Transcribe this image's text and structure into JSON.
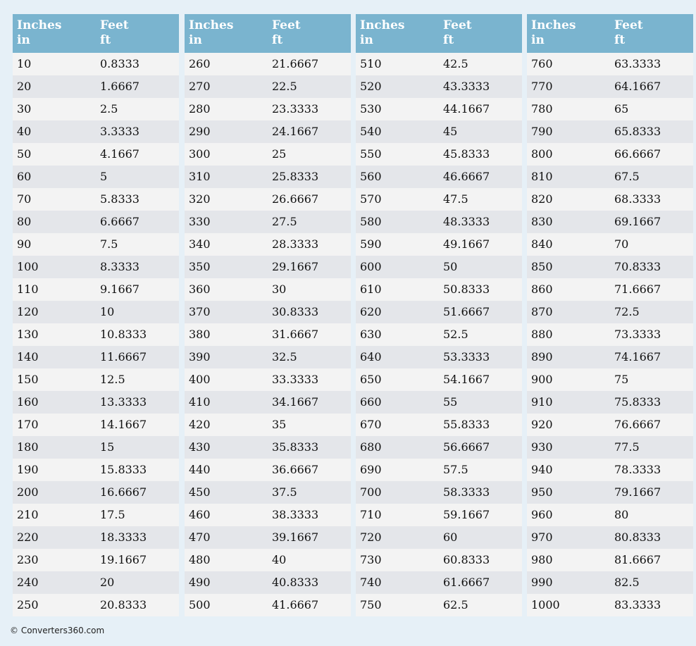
{
  "tables": [
    {
      "header": [
        [
          "Inches",
          "in"
        ],
        [
          "Feet",
          "ft"
        ]
      ],
      "rows": [
        [
          10,
          0.8333
        ],
        [
          20,
          1.6667
        ],
        [
          30,
          2.5
        ],
        [
          40,
          3.3333
        ],
        [
          50,
          4.1667
        ],
        [
          60,
          5
        ],
        [
          70,
          5.8333
        ],
        [
          80,
          6.6667
        ],
        [
          90,
          7.5
        ],
        [
          100,
          8.3333
        ],
        [
          110,
          9.1667
        ],
        [
          120,
          10
        ],
        [
          130,
          10.8333
        ],
        [
          140,
          11.6667
        ],
        [
          150,
          12.5
        ],
        [
          160,
          13.3333
        ],
        [
          170,
          14.1667
        ],
        [
          180,
          15
        ],
        [
          190,
          15.8333
        ],
        [
          200,
          16.6667
        ],
        [
          210,
          17.5
        ],
        [
          220,
          18.3333
        ],
        [
          230,
          19.1667
        ],
        [
          240,
          20
        ],
        [
          250,
          20.8333
        ]
      ]
    },
    {
      "header": [
        [
          "Inches",
          "in"
        ],
        [
          "Feet",
          "ft"
        ]
      ],
      "rows": [
        [
          260,
          21.6667
        ],
        [
          270,
          22.5
        ],
        [
          280,
          23.3333
        ],
        [
          290,
          24.1667
        ],
        [
          300,
          25
        ],
        [
          310,
          25.8333
        ],
        [
          320,
          26.6667
        ],
        [
          330,
          27.5
        ],
        [
          340,
          28.3333
        ],
        [
          350,
          29.1667
        ],
        [
          360,
          30
        ],
        [
          370,
          30.8333
        ],
        [
          380,
          31.6667
        ],
        [
          390,
          32.5
        ],
        [
          400,
          33.3333
        ],
        [
          410,
          34.1667
        ],
        [
          420,
          35
        ],
        [
          430,
          35.8333
        ],
        [
          440,
          36.6667
        ],
        [
          450,
          37.5
        ],
        [
          460,
          38.3333
        ],
        [
          470,
          39.1667
        ],
        [
          480,
          40
        ],
        [
          490,
          40.8333
        ],
        [
          500,
          41.6667
        ]
      ]
    },
    {
      "header": [
        [
          "Inches",
          "in"
        ],
        [
          "Feet",
          "ft"
        ]
      ],
      "rows": [
        [
          510,
          42.5
        ],
        [
          520,
          43.3333
        ],
        [
          530,
          44.1667
        ],
        [
          540,
          45
        ],
        [
          550,
          45.8333
        ],
        [
          560,
          46.6667
        ],
        [
          570,
          47.5
        ],
        [
          580,
          48.3333
        ],
        [
          590,
          49.1667
        ],
        [
          600,
          50
        ],
        [
          610,
          50.8333
        ],
        [
          620,
          51.6667
        ],
        [
          630,
          52.5
        ],
        [
          640,
          53.3333
        ],
        [
          650,
          54.1667
        ],
        [
          660,
          55
        ],
        [
          670,
          55.8333
        ],
        [
          680,
          56.6667
        ],
        [
          690,
          57.5
        ],
        [
          700,
          58.3333
        ],
        [
          710,
          59.1667
        ],
        [
          720,
          60
        ],
        [
          730,
          60.8333
        ],
        [
          740,
          61.6667
        ],
        [
          750,
          62.5
        ]
      ]
    },
    {
      "header": [
        [
          "Inches",
          "in"
        ],
        [
          "Feet",
          "ft"
        ]
      ],
      "rows": [
        [
          760,
          63.3333
        ],
        [
          770,
          64.1667
        ],
        [
          780,
          65
        ],
        [
          790,
          65.8333
        ],
        [
          800,
          66.6667
        ],
        [
          810,
          67.5
        ],
        [
          820,
          68.3333
        ],
        [
          830,
          69.1667
        ],
        [
          840,
          70
        ],
        [
          850,
          70.8333
        ],
        [
          860,
          71.6667
        ],
        [
          870,
          72.5
        ],
        [
          880,
          73.3333
        ],
        [
          890,
          74.1667
        ],
        [
          900,
          75
        ],
        [
          910,
          75.8333
        ],
        [
          920,
          76.6667
        ],
        [
          930,
          77.5
        ],
        [
          940,
          78.3333
        ],
        [
          950,
          79.1667
        ],
        [
          960,
          80
        ],
        [
          970,
          80.8333
        ],
        [
          980,
          81.6667
        ],
        [
          990,
          82.5
        ],
        [
          1000,
          83.3333
        ]
      ]
    }
  ],
  "footer": "© Converters360.com"
}
